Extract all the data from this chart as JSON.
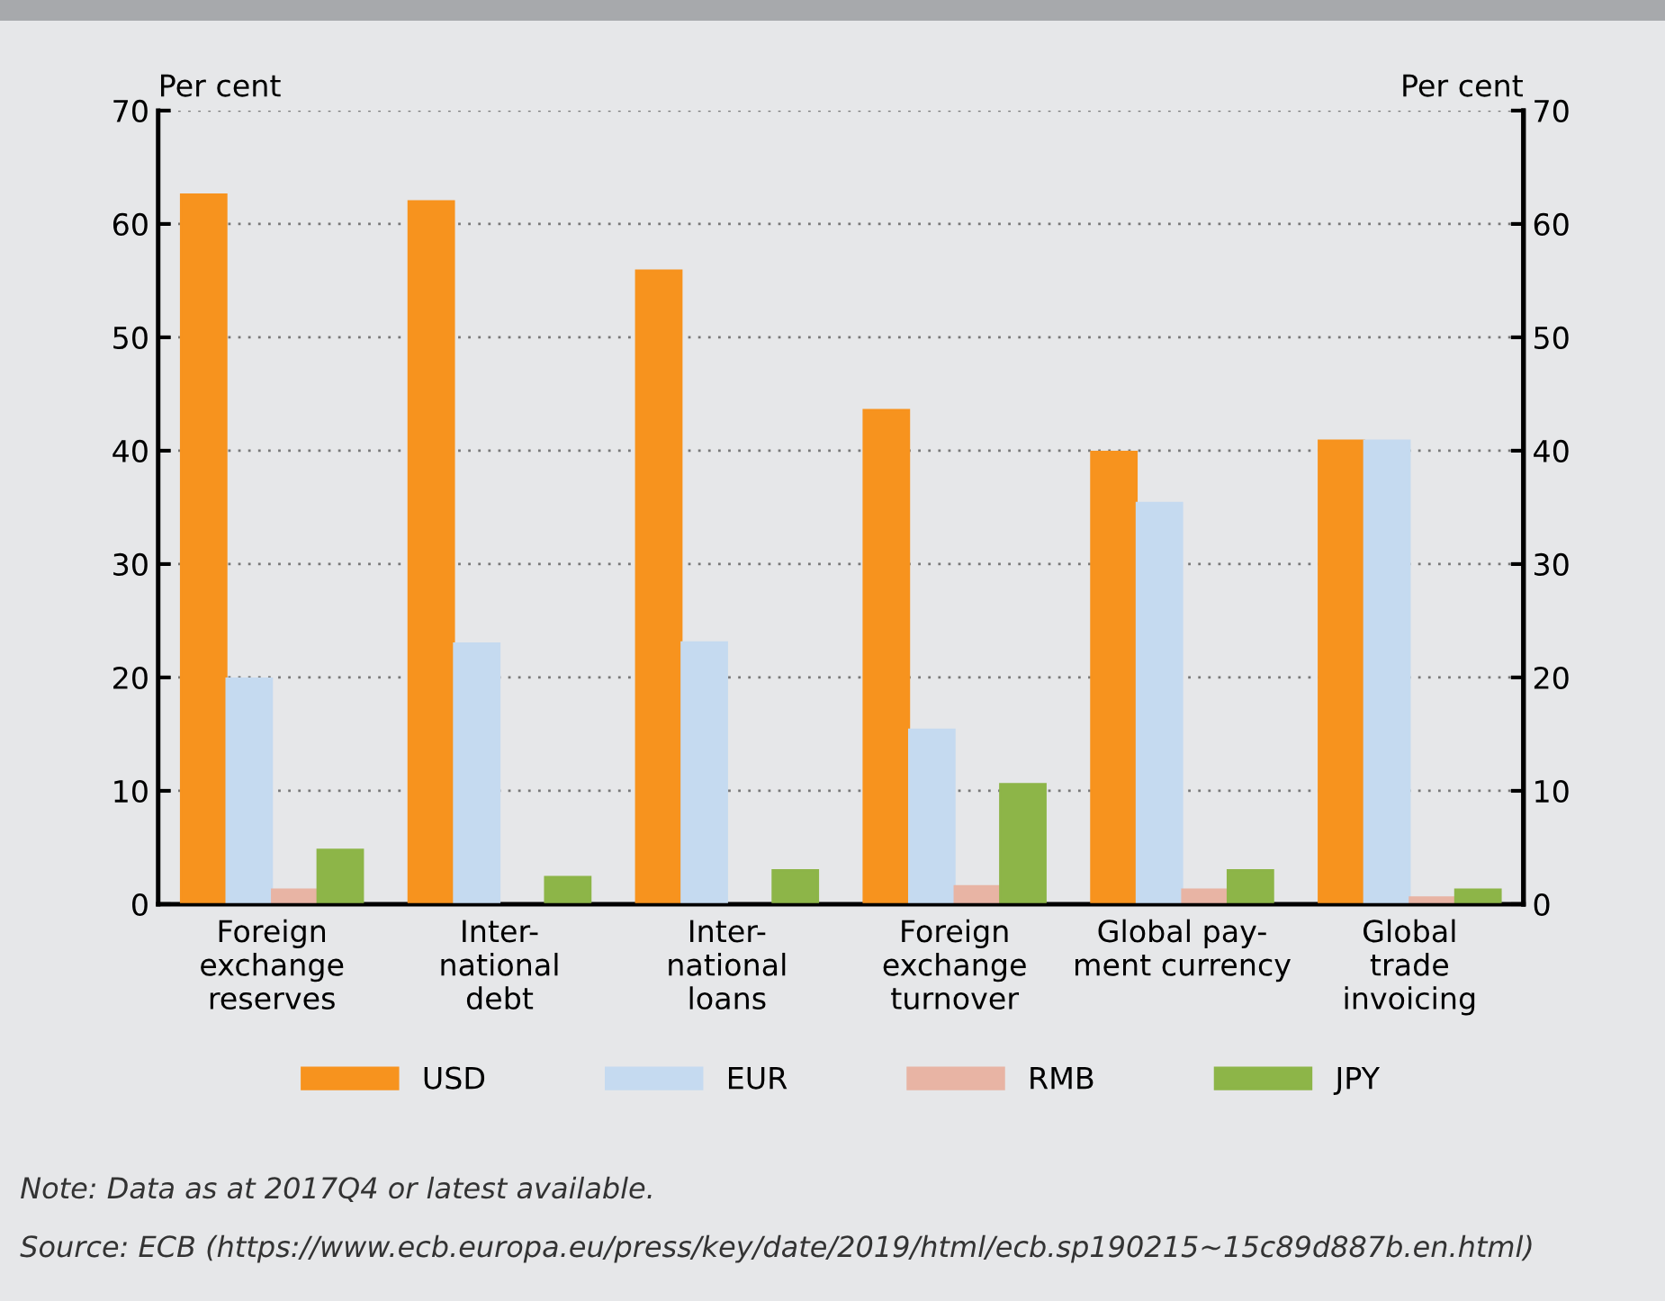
{
  "chart_data": {
    "type": "bar",
    "categories": [
      "Foreign\nexchange\nreserves",
      "Inter-\nnational\ndebt",
      "Inter-\nnational\nloans",
      "Foreign\nexchange\nturnover",
      "Global pay-\nment currency",
      "Global\ntrade\ninvoicing"
    ],
    "series": [
      {
        "name": "USD",
        "color": "#f7931e",
        "values": [
          62.6,
          62.0,
          55.9,
          43.6,
          39.9,
          40.9
        ]
      },
      {
        "name": "EUR",
        "color": "#c5daf0",
        "values": [
          19.9,
          23.0,
          23.1,
          15.4,
          35.4,
          40.9
        ]
      },
      {
        "name": "RMB",
        "color": "#e8b4a4",
        "values": [
          1.3,
          null,
          null,
          1.6,
          1.3,
          0.6
        ]
      },
      {
        "name": "JPY",
        "color": "#8db548",
        "values": [
          4.8,
          2.4,
          3.0,
          10.6,
          3.0,
          1.3
        ]
      }
    ],
    "ylabel": "Per cent",
    "y2label": "Per cent",
    "ylim": [
      0,
      70
    ],
    "yticks": [
      0,
      10,
      20,
      30,
      40,
      50,
      60,
      70
    ],
    "y2lim": [
      0,
      70
    ],
    "y2ticks": [
      0,
      10,
      20,
      30,
      40,
      50,
      60,
      70
    ],
    "grid": "y",
    "legend": "bottom",
    "annotations": [
      "Note: Data as at 2017Q4 or latest available.",
      "Source: ECB (https://www.ecb.europa.eu/press/key/date/2019/html/ecb.sp190215~15c89d887b.en.html)"
    ]
  }
}
